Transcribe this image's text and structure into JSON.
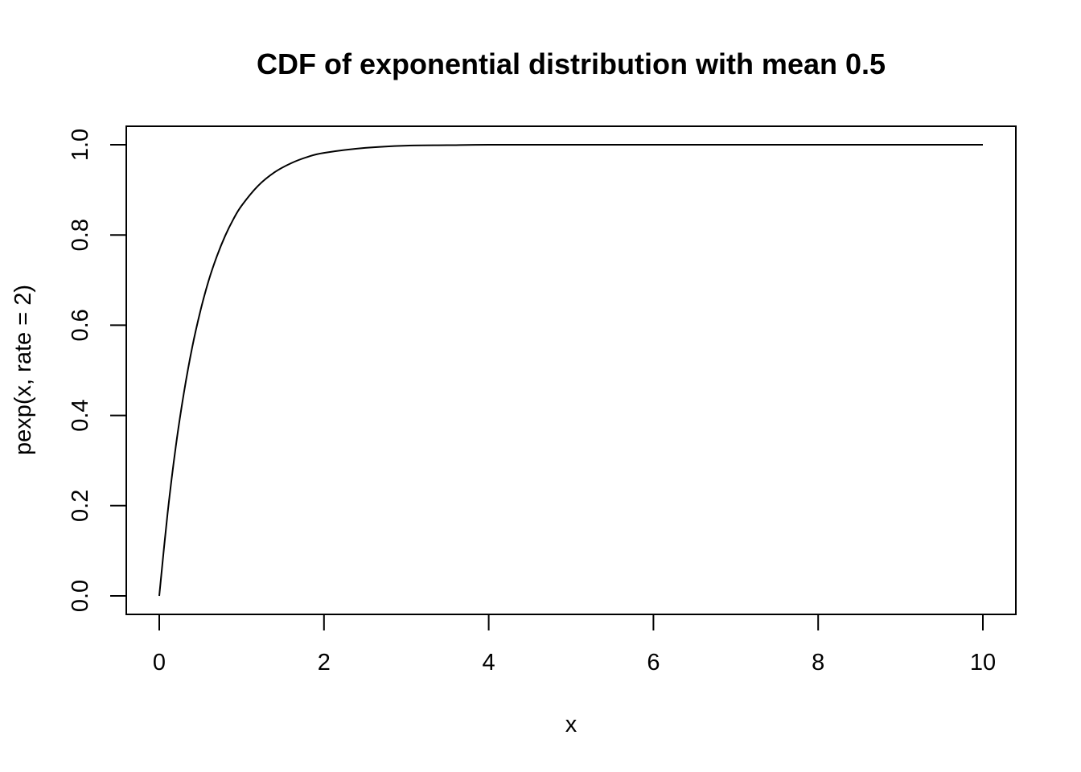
{
  "chart_data": {
    "type": "line",
    "title": "CDF of exponential distribution with mean 0.5",
    "xlabel": "x",
    "ylabel": "pexp(x, rate = 2)",
    "xlim": [
      0,
      10
    ],
    "ylim": [
      0,
      1
    ],
    "x_ticks": [
      "0",
      "2",
      "4",
      "6",
      "8",
      "10"
    ],
    "y_ticks": [
      "0.0",
      "0.2",
      "0.4",
      "0.6",
      "0.8",
      "1.0"
    ],
    "grid": false,
    "legend": "none",
    "series": [
      {
        "color": "#000000",
        "x": [
          0,
          0.1,
          0.2,
          0.3,
          0.4,
          0.5,
          0.6,
          0.7,
          0.8,
          0.9,
          1.0,
          1.2,
          1.4,
          1.6,
          1.8,
          2.0,
          2.5,
          3.0,
          3.5,
          4.0,
          5.0,
          6.0,
          7.0,
          8.0,
          9.0,
          10.0
        ],
        "y": [
          0,
          0.181,
          0.33,
          0.451,
          0.551,
          0.632,
          0.699,
          0.753,
          0.798,
          0.835,
          0.865,
          0.909,
          0.939,
          0.959,
          0.973,
          0.982,
          0.993,
          0.998,
          0.999,
          1.0,
          1.0,
          1.0,
          1.0,
          1.0,
          1.0,
          1.0
        ]
      }
    ]
  }
}
